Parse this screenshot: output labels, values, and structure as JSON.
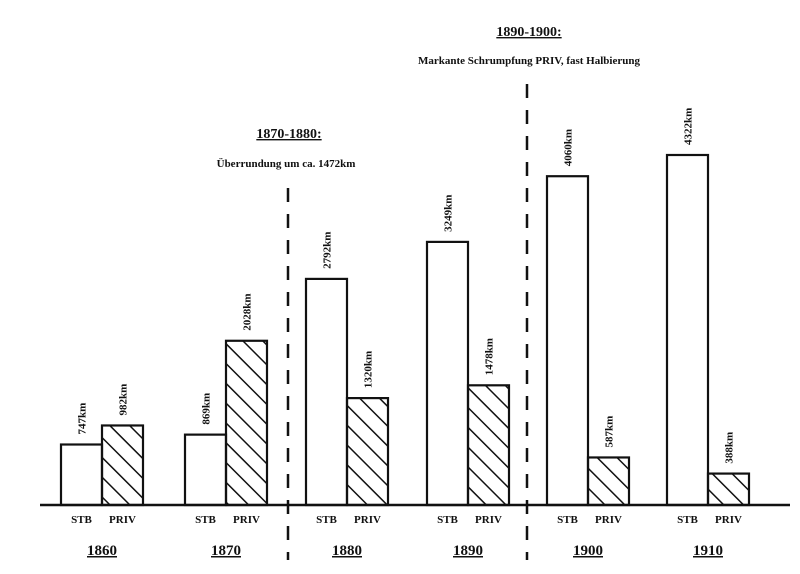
{
  "chart_data": {
    "type": "bar",
    "title": "",
    "xlabel": "",
    "ylabel": "",
    "ylim": [
      0,
      4322
    ],
    "grid": false,
    "categories": [
      "1860",
      "1870",
      "1880",
      "1890",
      "1900",
      "1910"
    ],
    "series": [
      {
        "name": "STB",
        "values": [
          747,
          869,
          2792,
          3249,
          4060,
          4322
        ],
        "labels": [
          "747km",
          "869km",
          "2792km",
          "3249km",
          "4060km",
          "4322km"
        ],
        "fill": "plain"
      },
      {
        "name": "PRIV",
        "values": [
          982,
          2028,
          1320,
          1478,
          587,
          388
        ],
        "labels": [
          "982km",
          "2028km",
          "1320km",
          "1478km",
          "587km",
          "388km"
        ],
        "fill": "hatched"
      }
    ],
    "annotations": [
      {
        "heading": "1870-1880:",
        "text": "Überrundung um ca. 1472km",
        "between": [
          "1870",
          "1880"
        ]
      },
      {
        "heading": "1890-1900:",
        "text": "Markante Schrumpfung PRIV, fast Halbierung",
        "between": [
          "1890",
          "1900"
        ]
      }
    ]
  }
}
